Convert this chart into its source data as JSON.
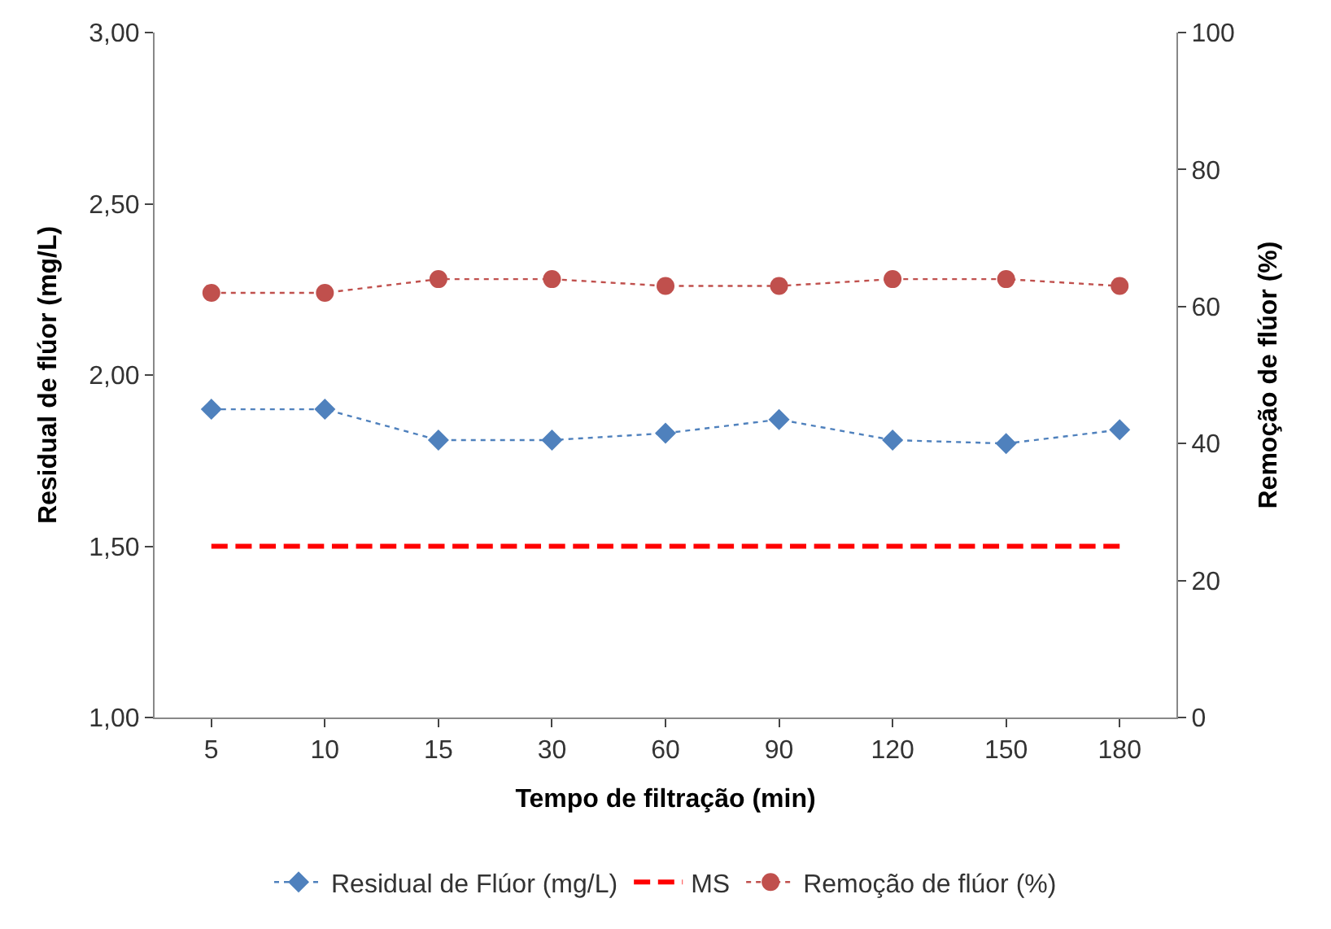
{
  "chart_data": {
    "type": "line",
    "xlabel": "Tempo de filtração (min)",
    "ylabel": "Residual de flúor (mg/L)",
    "y2label": "Remoção de flúor (%)",
    "categories": [
      "5",
      "10",
      "15",
      "30",
      "60",
      "90",
      "120",
      "150",
      "180"
    ],
    "series": [
      {
        "name": "Residual de Flúor (mg/L)",
        "color": "#4f81bd",
        "marker": "diamond",
        "line_style": "dotted",
        "values": [
          1.9,
          1.9,
          1.81,
          1.81,
          1.83,
          1.87,
          1.81,
          1.8,
          1.84
        ]
      },
      {
        "name": "MS",
        "color": "#ff0000",
        "marker": "none",
        "line_style": "dashed",
        "values": [
          1.5,
          1.5,
          1.5,
          1.5,
          1.5,
          1.5,
          1.5,
          1.5,
          1.5
        ]
      },
      {
        "name": "Remoção de flúor (%)",
        "color": "#c0504d",
        "marker": "circle",
        "line_style": "dotted",
        "axis": "y2",
        "values": [
          62,
          62,
          64,
          64,
          63,
          63,
          64,
          64,
          63
        ]
      }
    ],
    "ylim": [
      1,
      3
    ],
    "yticks": [
      {
        "value": 1,
        "label": "1,00"
      },
      {
        "value": 1.5,
        "label": "1,50"
      },
      {
        "value": 2,
        "label": "2,00"
      },
      {
        "value": 2.5,
        "label": "2,50"
      },
      {
        "value": 3,
        "label": "3,00"
      }
    ],
    "y2lim": [
      0,
      100
    ],
    "y2ticks": [
      0,
      20,
      40,
      60,
      80,
      100
    ],
    "legend": "bottom"
  }
}
